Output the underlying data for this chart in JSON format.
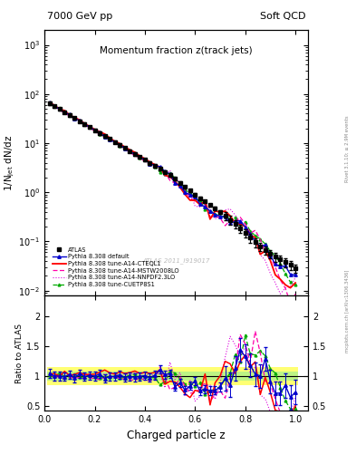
{
  "title_main": "Momentum fraction z(track jets)",
  "top_left_label": "7000 GeV pp",
  "top_right_label": "Soft QCD",
  "ylabel_main": "1/N$_{jet}$ dN/dz",
  "ylabel_ratio": "Ratio to ATLAS",
  "xlabel": "Charged particle z",
  "rivet_label": "Rivet 3.1.10; ≥ 2.9M events",
  "mcplots_label": "mcplots.cern.ch [arXiv:1306.3436]",
  "watermark": "ATLAS 2011_I919017",
  "ylim_main": [
    0.008,
    2000
  ],
  "ylim_ratio": [
    0.42,
    2.35
  ],
  "xlim": [
    0.0,
    1.05
  ],
  "colors": {
    "ATLAS": "#000000",
    "default": "#0000cc",
    "CTEQL1": "#ff0000",
    "MSTW2008LO": "#ff00aa",
    "NNPDF2.3LO": "#dd00dd",
    "CUETP8S1": "#00aa00"
  },
  "background_color": "#ffffff"
}
